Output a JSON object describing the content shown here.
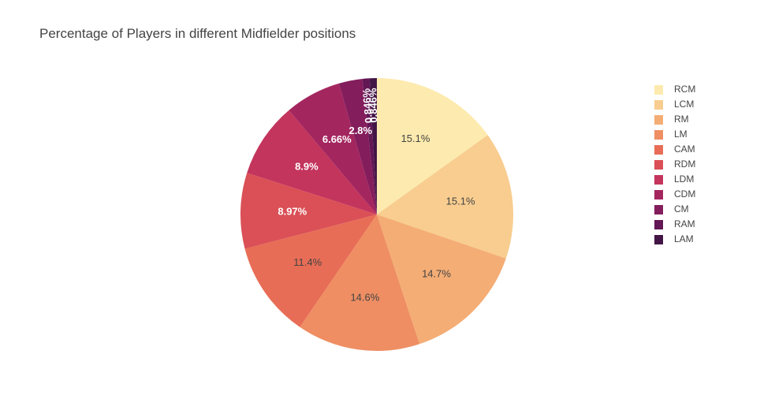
{
  "chart_data": {
    "type": "pie",
    "title": "Percentage of Players in different Midfielder positions",
    "slices": [
      {
        "label": "RCM",
        "value": 15.1,
        "text": "15.1%",
        "color": "#fdeaae"
      },
      {
        "label": "LCM",
        "value": 15.1,
        "text": "15.1%",
        "color": "#f8cd8f"
      },
      {
        "label": "RM",
        "value": 14.7,
        "text": "14.7%",
        "color": "#f4ad75"
      },
      {
        "label": "LM",
        "value": 14.6,
        "text": "14.6%",
        "color": "#ef8e63"
      },
      {
        "label": "CAM",
        "value": 11.4,
        "text": "11.4%",
        "color": "#e86d56"
      },
      {
        "label": "RDM",
        "value": 8.97,
        "text": "8.97%",
        "color": "#da5056"
      },
      {
        "label": "LDM",
        "value": 8.9,
        "text": "8.9%",
        "color": "#c3355d"
      },
      {
        "label": "CDM",
        "value": 6.66,
        "text": "6.66%",
        "color": "#a4265f"
      },
      {
        "label": "CM",
        "value": 2.8,
        "text": "2.8%",
        "color": "#841d5c"
      },
      {
        "label": "RAM",
        "value": 0.846,
        "text": "0.846%",
        "color": "#631755"
      },
      {
        "label": "LAM",
        "value": 0.846,
        "text": "0.846%",
        "color": "#431546"
      }
    ],
    "legend_position": "top-right",
    "label_color_dark": "#444444",
    "label_color_light": "#ffffff"
  }
}
